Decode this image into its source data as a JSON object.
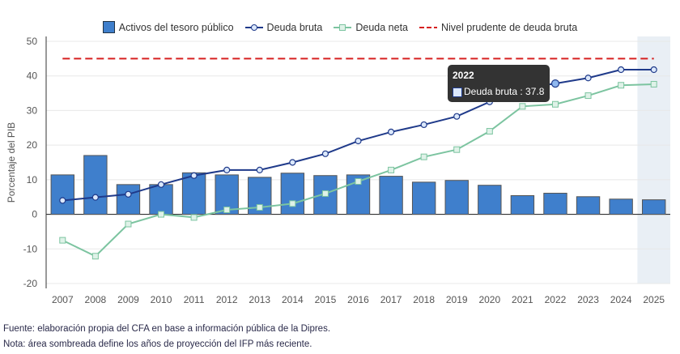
{
  "chart_data": {
    "type": "bar",
    "ylabel": "Porcentaje del PIB",
    "ylim": [
      -20,
      50
    ],
    "yticks": [
      -20,
      -10,
      0,
      10,
      20,
      30,
      40,
      50
    ],
    "categories": [
      "2007",
      "2008",
      "2009",
      "2010",
      "2011",
      "2012",
      "2013",
      "2014",
      "2015",
      "2016",
      "2017",
      "2018",
      "2019",
      "2020",
      "2021",
      "2022",
      "2023",
      "2024",
      "2025"
    ],
    "series": [
      {
        "name": "Activos del tesoro público",
        "type": "bar",
        "color": "#3f7fcc",
        "values": [
          11.4,
          17.0,
          8.6,
          8.6,
          12.0,
          11.4,
          10.7,
          11.9,
          11.2,
          11.4,
          11.0,
          9.3,
          9.8,
          8.4,
          5.4,
          6.1,
          5.1,
          4.4,
          4.2
        ]
      },
      {
        "name": "Deuda bruta",
        "type": "line",
        "color": "#1f3a8a",
        "values": [
          4.0,
          4.9,
          5.8,
          8.6,
          11.2,
          12.8,
          12.8,
          15.0,
          17.5,
          21.2,
          23.8,
          25.9,
          28.3,
          32.5,
          36.4,
          37.8,
          39.4,
          41.8,
          41.8
        ]
      },
      {
        "name": "Deuda neta",
        "type": "line",
        "color": "#7cc4a0",
        "values": [
          -7.5,
          -12.1,
          -2.8,
          0,
          -0.9,
          1.3,
          2.0,
          3.1,
          6.0,
          9.5,
          12.8,
          16.6,
          18.7,
          24.0,
          31.2,
          31.8,
          34.3,
          37.3,
          37.6
        ]
      },
      {
        "name": "Nivel prudente de deuda bruta",
        "type": "dashed-line",
        "color": "#d62020",
        "value": 45
      }
    ],
    "shaded_categories": [
      "2025"
    ],
    "legend": "top",
    "grid": true,
    "tooltip": {
      "title": "2022",
      "label": "Deuda bruta : 37.8"
    }
  },
  "notes": [
    "Fuente: elaboración propia del CFA en base a información pública de la Dipres.",
    "Nota: área sombreada define los años de proyección del IFP más reciente."
  ]
}
